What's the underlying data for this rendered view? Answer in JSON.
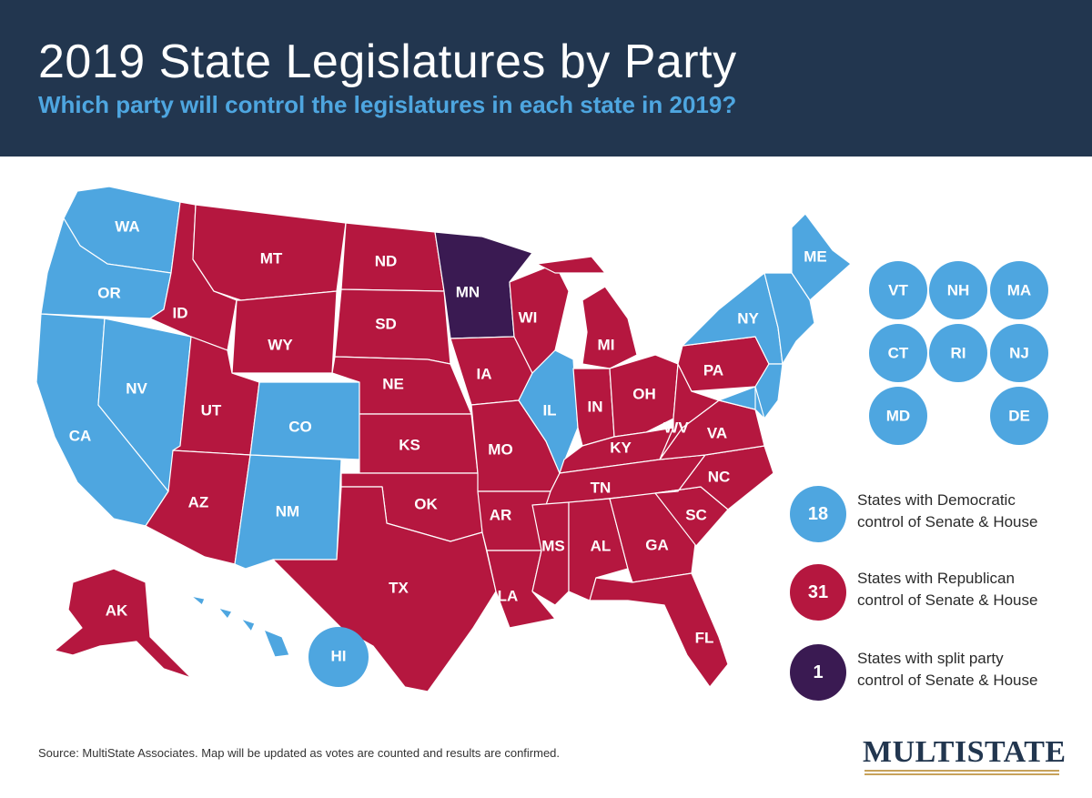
{
  "header": {
    "title": "2019 State Legislatures by Party",
    "subtitle": "Which party will control the legislatures in each state in 2019?"
  },
  "colors": {
    "header_bg": "#22364f",
    "democratic": "#4ea6e0",
    "republican": "#b5173f",
    "split": "#3a1a52",
    "subtitle": "#4ea6e0"
  },
  "states": {
    "WA": {
      "label": "WA",
      "control": "democratic"
    },
    "OR": {
      "label": "OR",
      "control": "democratic"
    },
    "CA": {
      "label": "CA",
      "control": "democratic"
    },
    "NV": {
      "label": "NV",
      "control": "democratic"
    },
    "ID": {
      "label": "ID",
      "control": "republican"
    },
    "MT": {
      "label": "MT",
      "control": "republican"
    },
    "WY": {
      "label": "WY",
      "control": "republican"
    },
    "UT": {
      "label": "UT",
      "control": "republican"
    },
    "AZ": {
      "label": "AZ",
      "control": "republican"
    },
    "CO": {
      "label": "CO",
      "control": "democratic"
    },
    "NM": {
      "label": "NM",
      "control": "democratic"
    },
    "ND": {
      "label": "ND",
      "control": "republican"
    },
    "SD": {
      "label": "SD",
      "control": "republican"
    },
    "NE": {
      "label": "NE",
      "control": "republican"
    },
    "KS": {
      "label": "KS",
      "control": "republican"
    },
    "OK": {
      "label": "OK",
      "control": "republican"
    },
    "TX": {
      "label": "TX",
      "control": "republican"
    },
    "MN": {
      "label": "MN",
      "control": "split"
    },
    "IA": {
      "label": "IA",
      "control": "republican"
    },
    "MO": {
      "label": "MO",
      "control": "republican"
    },
    "AR": {
      "label": "AR",
      "control": "republican"
    },
    "LA": {
      "label": "LA",
      "control": "republican"
    },
    "WI": {
      "label": "WI",
      "control": "republican"
    },
    "IL": {
      "label": "IL",
      "control": "democratic"
    },
    "MI": {
      "label": "MI",
      "control": "republican"
    },
    "IN": {
      "label": "IN",
      "control": "republican"
    },
    "OH": {
      "label": "OH",
      "control": "republican"
    },
    "KY": {
      "label": "KY",
      "control": "republican"
    },
    "TN": {
      "label": "TN",
      "control": "republican"
    },
    "MS": {
      "label": "MS",
      "control": "republican"
    },
    "AL": {
      "label": "AL",
      "control": "republican"
    },
    "GA": {
      "label": "GA",
      "control": "republican"
    },
    "FL": {
      "label": "FL",
      "control": "republican"
    },
    "SC": {
      "label": "SC",
      "control": "republican"
    },
    "NC": {
      "label": "NC",
      "control": "republican"
    },
    "VA": {
      "label": "VA",
      "control": "democratic_partial_none"
    },
    "WV": {
      "label": "WV",
      "control": "republican"
    },
    "PA": {
      "label": "PA",
      "control": "republican"
    },
    "NY": {
      "label": "NY",
      "control": "democratic"
    },
    "ME": {
      "label": "ME",
      "control": "democratic"
    },
    "AK": {
      "label": "AK",
      "control": "republican"
    },
    "HI": {
      "label": "HI",
      "control": "democratic"
    }
  },
  "small_states": [
    {
      "label": "VT"
    },
    {
      "label": "NH"
    },
    {
      "label": "MA"
    },
    {
      "label": "CT"
    },
    {
      "label": "RI"
    },
    {
      "label": "NJ"
    },
    {
      "label": "MD"
    },
    {
      "label": "DE"
    }
  ],
  "legend": [
    {
      "count": "18",
      "line1": "States with Democratic",
      "line2": "control of Senate & House",
      "party": "democratic"
    },
    {
      "count": "31",
      "line1": "States with Republican",
      "line2": "control of Senate & House",
      "party": "republican"
    },
    {
      "count": "1",
      "line1": "States with split party",
      "line2": "control of Senate & House",
      "party": "split"
    }
  ],
  "footer": {
    "source": "Source: MultiState Associates. Map will be updated as votes are counted and results are confirmed.",
    "logo": "MultiState"
  }
}
